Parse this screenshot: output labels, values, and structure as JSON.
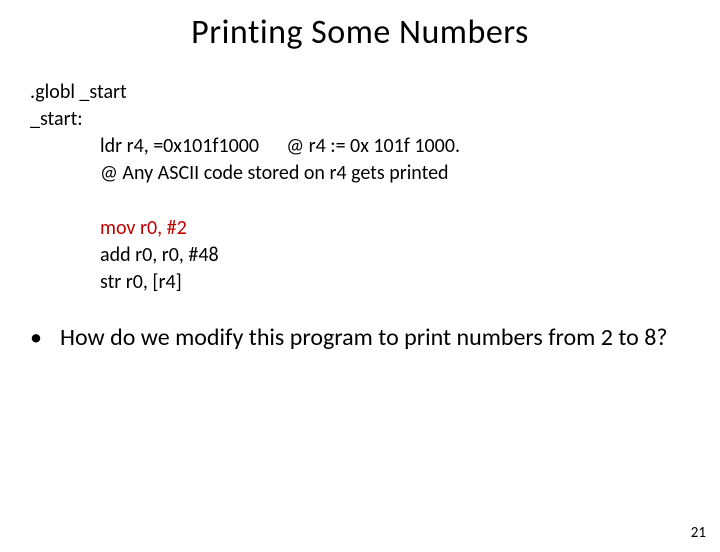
{
  "title": "Printing Some Numbers",
  "code": {
    "l1": ".globl _start",
    "l2": "_start:",
    "l3a": "ldr r4, =0x101f1000",
    "l3b": "@ r4 := 0x 101f 1000.",
    "l4": "@ Any ASCII code stored on r4 gets printed",
    "l5": "mov r0, #2",
    "l6": "add r0, r0, #48",
    "l7": "str r0, [r4]"
  },
  "bullet": {
    "marker": "•",
    "text": "How do we modify this program to print numbers from 2 to 8?"
  },
  "pageNumber": "21",
  "colors": {
    "text": "#000000",
    "highlight": "#c00000",
    "background": "#ffffff"
  },
  "typography": {
    "title_fontsize": 34,
    "body_fontsize": 20,
    "bullet_fontsize": 24,
    "page_fontsize": 15,
    "font_family": "Calibri"
  }
}
